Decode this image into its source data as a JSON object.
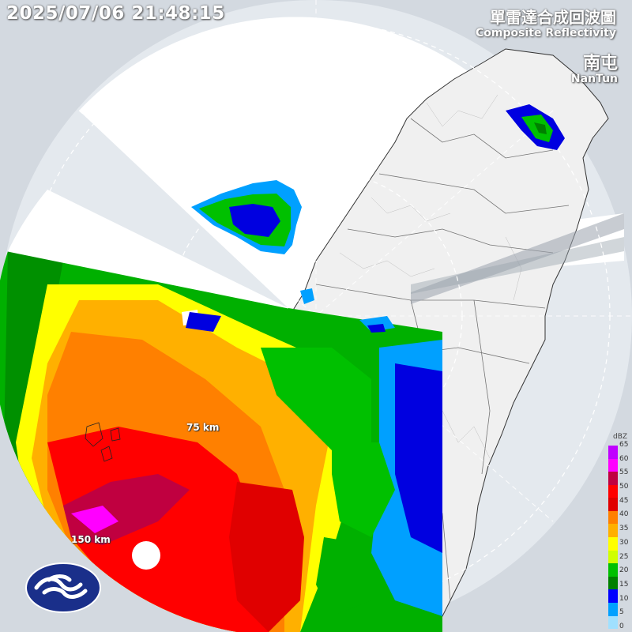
{
  "timestamp": "2025/07/06 21:48:15",
  "title_zh": "單雷達合成回波圖",
  "title_en": "Composite Reflectivity",
  "station_zh": "南屯",
  "station_en": "NanTun",
  "range_labels": [
    "75 km",
    "150 km"
  ],
  "legend": {
    "unit": "dBZ",
    "levels": [
      "65",
      "60",
      "55",
      "50",
      "45",
      "40",
      "35",
      "30",
      "25",
      "20",
      "15",
      "10",
      "5",
      "0"
    ],
    "colors": [
      "#c000ff",
      "#ff00ff",
      "#c00040",
      "#ff0000",
      "#e00000",
      "#ff8000",
      "#ffb000",
      "#ffff00",
      "#d0ff00",
      "#00c000",
      "#008000",
      "#0000ff",
      "#00a0ff",
      "#a0e0ff"
    ]
  },
  "logo": "cwa-logo-icon"
}
